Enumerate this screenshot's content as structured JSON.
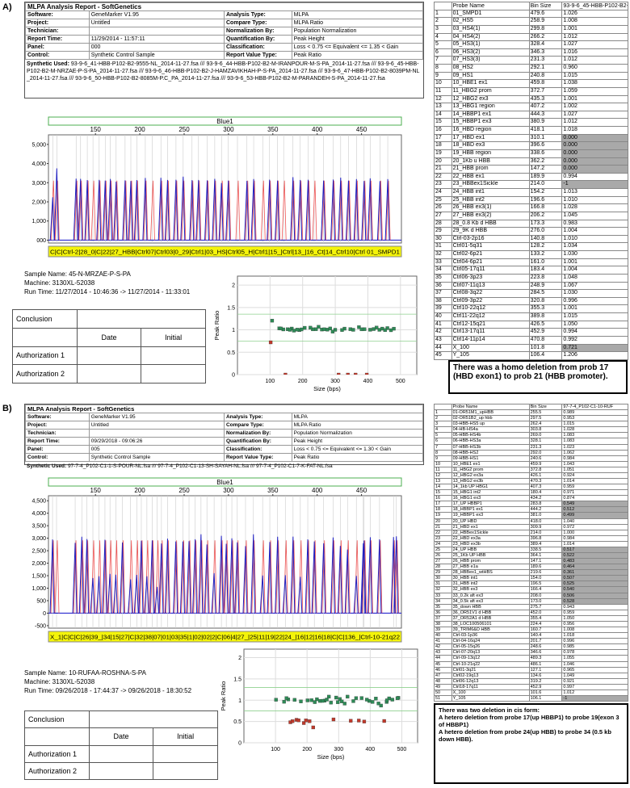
{
  "panels": [
    {
      "label": "A)",
      "report": {
        "title": "MLPA Analysis Report - SoftGenetics",
        "rows": [
          [
            "Software:",
            "GeneMarker V1.95",
            "Analysis Type:",
            "MLPA"
          ],
          [
            "Project:",
            "Untitled",
            "Compare Type:",
            "MLPA Ratio"
          ],
          [
            "Technician:",
            "",
            "Normalization By:",
            "Population Normalization"
          ],
          [
            "Report Time:",
            "11/29/2014 - 11:57:11",
            "Quantification By:",
            "Peak Height"
          ],
          [
            "Panel:",
            "000",
            "Classification:",
            "Loss < 0.75 <= Equivalent <= 1.35 < Gain"
          ],
          [
            "Control:",
            "Synthetic Control Sample",
            "Report Value Type:",
            "Peak Ratio"
          ]
        ],
        "synthetic_label": "Synthetic Used:",
        "synthetic_text": "93-9-6_41-HBB-P102-B2-9555-NL_2014-11-27.fsa /// 93-9-6_44-HBB-P102-B2-M-IRANPOUR-M-S-PA_2014-11-27.fsa /// 93-9-6_45-HBB-P102-B2-M-NRZAE-P-S-PA_2014-11-27.fsa /// 93-9-6_46-HBB-P102-B2-J-HAMZAVIKHAH-P-S-PA_2014-11-27.fsa /// 93-9-6_47-HBB-P102-B2-8039PM-NL_2014-11-27.fsa /// 93-9-6_50-HBB-P102-B2-8085M-P.C_PA_2014-11-27.fsa /// 93-9-6_53-HBB-P102-B2-M-PARANDEH-S-PA_2014-11-27.fsa"
      },
      "electropherogram": {
        "title": "Blue1",
        "xlim": [
          97,
          495
        ],
        "xticks": [
          150,
          200,
          250,
          300,
          350,
          400,
          450
        ],
        "ylim": [
          -150,
          5500
        ],
        "yticks": [
          {
            "value": 0,
            "label": "000"
          },
          {
            "value": 1000,
            "label": "1,000"
          },
          {
            "value": 2000,
            "label": "2,000"
          },
          {
            "value": 3000,
            "label": "3,000"
          },
          {
            "value": 4000,
            "label": "4,000"
          },
          {
            "value": 5000,
            "label": "5,000"
          }
        ],
        "strip": "C|C|Ctrl-2|28_0|C|22|27_HBB|Ctrl07|Ctrl03|0_29|Ctrl1|03_HS|Ctrl05_H|Ctrl1|15_|Ctrl|13_|16_Ct|14_Ctrl10|Ctrl 01_SMPD1"
      },
      "sample_info": [
        "Sample Name: 45-N-MRZAE-P-S-PA",
        "Machine: 3130XL-52038",
        "Run Time: 11/27/2014 - 10:46:36 -> 11/27/2014 - 11:33:01"
      ],
      "conclusion": {
        "title": "Conclusion",
        "columns": [
          "Date",
          "Initial"
        ],
        "rows": [
          "Authorization 1",
          "Authorization 2"
        ]
      },
      "ratio_plot": {
        "xlabel": "Size (bps)",
        "ylabel": "Peak Ratio",
        "xlim": [
          0,
          550
        ],
        "xticks": [
          100,
          200,
          300,
          400,
          500
        ],
        "ylim": [
          0,
          2.2
        ],
        "yticks": [
          0,
          0.5,
          1,
          1.5,
          2
        ],
        "thresholds": [
          0.75,
          1.35
        ]
      },
      "probe_table": {
        "header": [
          "Probe Name",
          "Bin Size",
          "93-9-6_45-HBB-P102-B2-M"
        ],
        "rows": [
          [
            "1",
            "01_SMPD1",
            "479.6",
            "1.026"
          ],
          [
            "2",
            "02_HS5",
            "258.9",
            "1.008"
          ],
          [
            "3",
            "03_HS4(1)",
            "299.8",
            "1.001"
          ],
          [
            "4",
            "04_HS4(2)",
            "266.2",
            "1.012"
          ],
          [
            "5",
            "05_HS3(1)",
            "328.4",
            "1.027"
          ],
          [
            "6",
            "06_HS3(2)",
            "346.3",
            "1.016"
          ],
          [
            "7",
            "07_HS3(3)",
            "231.3",
            "1.012"
          ],
          [
            "8",
            "08_HS2",
            "292.1",
            "0.960"
          ],
          [
            "9",
            "09_HS1",
            "240.8",
            "1.015"
          ],
          [
            "10",
            "10_HBE1 ex1",
            "459.8",
            "1.038"
          ],
          [
            "11",
            "11_HBG2 prom",
            "372.7",
            "1.059"
          ],
          [
            "12",
            "12_HBG2 ex3",
            "435.3",
            "1.001"
          ],
          [
            "13",
            "13_HBG1 region",
            "407.2",
            "1.002"
          ],
          [
            "14",
            "14_HBBP1 ex1",
            "444.3",
            "1.027"
          ],
          [
            "15",
            "15_HBBP1 ex3",
            "380.9",
            "1.012"
          ],
          [
            "16",
            "16_HBD region",
            "418.1",
            "1.018"
          ],
          [
            "17",
            "17_HBD ex1",
            "310.1",
            "0.000"
          ],
          [
            "18",
            "18_HBD ex3",
            "396.6",
            "0.000"
          ],
          [
            "19",
            "19_HBB region",
            "338.6",
            "0.000"
          ],
          [
            "20",
            "20_1Kb u HBB",
            "362.2",
            "0.000"
          ],
          [
            "21",
            "21_HBB prom",
            "147.2",
            "0.000"
          ],
          [
            "22",
            "22_HBB ex1",
            "189.9",
            "0.994"
          ],
          [
            "23",
            "23_HBBex1Sickle",
            "214.0",
            "-1"
          ],
          [
            "24",
            "24_HBB int1",
            "154.2",
            "1.013"
          ],
          [
            "25",
            "25_HBB int2",
            "196.6",
            "1.010"
          ],
          [
            "26",
            "26_HBB ex3(1)",
            "166.8",
            "1.028"
          ],
          [
            "27",
            "27_HBB ex3(2)",
            "206.2",
            "1.045"
          ],
          [
            "28",
            "28_0.8 Kb d HBB",
            "173.3",
            "0.983"
          ],
          [
            "29",
            "29_9K d HBB",
            "276.0",
            "1.004"
          ],
          [
            "30",
            "Ctrl-03-2p16",
            "140.8",
            "1.010"
          ],
          [
            "31",
            "Ctrl01-5q31",
            "128.2",
            "1.034"
          ],
          [
            "32",
            "Ctrl02-6p21",
            "133.2",
            "1.030"
          ],
          [
            "33",
            "Ctrl04-6p21",
            "161.0",
            "1.001"
          ],
          [
            "34",
            "Ctrl05-17q11",
            "183.4",
            "1.004"
          ],
          [
            "35",
            "Ctrl06-3p23",
            "223.8",
            "1.048"
          ],
          [
            "36",
            "Ctrl07-11q13",
            "248.9",
            "1.067"
          ],
          [
            "37",
            "Ctrl08-3q22",
            "284.5",
            "1.030"
          ],
          [
            "38",
            "Ctrl09-3p22",
            "320.8",
            "0.996"
          ],
          [
            "39",
            "Ctrl10-22q12",
            "355.3",
            "1.001"
          ],
          [
            "40",
            "Ctrl11-22q12",
            "389.8",
            "1.015"
          ],
          [
            "41",
            "Ctrl12-15q21",
            "426.5",
            "1.050"
          ],
          [
            "42",
            "Ctrl13-17q11",
            "452.9",
            "0.994"
          ],
          [
            "43",
            "Ctrl14-11p14",
            "470.8",
            "0.992"
          ],
          [
            "44",
            "X_100",
            "101.8",
            "0.721"
          ],
          [
            "45",
            "Y_105",
            "106.4",
            "1.206"
          ]
        ]
      },
      "note": [
        "There was a homo deletion from prob 17 (HBD exon1) to prob 21 (HBB promoter)."
      ]
    },
    {
      "label": "B)",
      "report": {
        "title": "MLPA Analysis Report - SoftGenetics",
        "rows": [
          [
            "Software:",
            "GeneMarker V1.95",
            "Analysis Type:",
            "MLPA"
          ],
          [
            "Project:",
            "Untitled",
            "Compare Type:",
            "MLPA Ratio"
          ],
          [
            "Technician:",
            "",
            "Normalization By:",
            "Population Normalization"
          ],
          [
            "Report Time:",
            "09/29/2018 - 09:06:26",
            "Quantification By:",
            "Peak Height"
          ],
          [
            "Panel:",
            "005",
            "Classification:",
            "Loss < 0.75 <= Equivalent <= 1.30 < Gain"
          ],
          [
            "Control:",
            "Synthetic Control Sample",
            "Report Value Type:",
            "Peak Ratio"
          ]
        ],
        "synthetic_label": "Synthetic Used:",
        "synthetic_text": "97-7-4_P102-C1-1-S-POUR-NL.fsa /// 97-7-4_P102-C1-13-SH-SAYAH-NL.fsa /// 97-7-4_P102-C1-7-K-FAT-NL.fsa"
      },
      "electropherogram": {
        "title": "Blue1",
        "xlim": [
          97,
          495
        ],
        "xticks": [
          150,
          200,
          250,
          300,
          350,
          400,
          450
        ],
        "ylim": [
          -600,
          4700
        ],
        "yticks": [
          -500,
          0,
          500,
          {
            "value": 1000,
            "label": "1,000"
          },
          {
            "value": 1500,
            "label": "1,500"
          },
          {
            "value": 2000,
            "label": "2,000"
          },
          {
            "value": 2500,
            "label": "2,500"
          },
          {
            "value": 3000,
            "label": "3,000"
          },
          {
            "value": 3500,
            "label": "3,500"
          },
          {
            "value": 4000,
            "label": "4,000"
          },
          {
            "value": 4500,
            "label": "4,500"
          }
        ],
        "strip": "X_1|C|C|C|26|39_|34|15|27|C|32|38|07|01|03|35|1|02|02|2|C|06|4|27_|25|11|19|22|24_|16|12|16|18|C|C|136_|Ctrl-10-21q22"
      },
      "sample_info": [
        "Sample Name: 10-RUFAA-ROSHNA-S-PA",
        "Machine: 3130XL-52038",
        "Run Time: 09/26/2018 - 17:44:37 -> 09/26/2018 - 18:30:52"
      ],
      "conclusion": {
        "title": "Conclusion",
        "columns": [
          "Date",
          "Initial"
        ],
        "rows": [
          "Authorization 1",
          "Authorization 2"
        ]
      },
      "ratio_plot": {
        "xlabel": "Size (bps)",
        "ylabel": "Peak Ratio",
        "xlim": [
          0,
          550
        ],
        "xticks": [
          100,
          200,
          300,
          400,
          500
        ],
        "ylim": [
          0,
          2.2
        ],
        "yticks": [
          0,
          0.5,
          1,
          1.5,
          2
        ],
        "thresholds": [
          0.75,
          1.3
        ]
      },
      "probe_table": {
        "header": [
          "Probe Name",
          "Bin Size",
          "97-7-4_P102-C1-10-RUF"
        ],
        "rows": [
          [
            "1",
            "01-OR51M1_upHBB",
            "255.5",
            "0.989"
          ],
          [
            "2",
            "02-OR51B2_up hbb",
            "297.5",
            "0.953"
          ],
          [
            "3",
            "03-HBB-HS5 up",
            "262.4",
            "1.015"
          ],
          [
            "4",
            "04-HB-HS4a",
            "303.8",
            "1.028"
          ],
          [
            "5",
            "05-HBB-HS4b",
            "269.0",
            "1.083"
          ],
          [
            "6",
            "06-HBB-HS3a",
            "328.1",
            "1.083"
          ],
          [
            "7",
            "07-HBB-HS3b",
            "231.3",
            "1.023"
          ],
          [
            "8",
            "08-HBB-HS2",
            "292.0",
            "1.062"
          ],
          [
            "9",
            "09-HBB-HS1",
            "240.6",
            "0.984"
          ],
          [
            "10",
            "10_HBE1 ex1",
            "459.9",
            "1.043"
          ],
          [
            "11",
            "11_HBG2 prom",
            "372.8",
            "1.051"
          ],
          [
            "12",
            "12_HBG2 ex3a",
            "426.1",
            "0.924"
          ],
          [
            "13",
            "13_HBG2 ex3b",
            "470.3",
            "1.014"
          ],
          [
            "14",
            "14_1kb UP HBG1",
            "407.3",
            "0.959"
          ],
          [
            "15",
            "15_HBG1 int2",
            "180.4",
            "0.971"
          ],
          [
            "16",
            "16_HBG1 ex3",
            "434.2",
            "0.874"
          ],
          [
            "17",
            "17_UP HBBP1",
            "283.8",
            "0.549"
          ],
          [
            "18",
            "18_HBBP1 ex1",
            "444.2",
            "0.512"
          ],
          [
            "19",
            "19_HBBP1 ex3",
            "381.0",
            "0.499"
          ],
          [
            "20",
            "20_UP HBD",
            "418.0",
            "1.040"
          ],
          [
            "21",
            "21_HBD ex1",
            "309.9",
            "0.972"
          ],
          [
            "22",
            "22_HBBex1Sickle",
            "214.0",
            "1.000"
          ],
          [
            "23",
            "22_HBD ex3a",
            "396.8",
            "0.984"
          ],
          [
            "24",
            "23_HBD ex3b",
            "389.4",
            "1.014"
          ],
          [
            "25",
            "24_UP HBB",
            "338.5",
            "0.517"
          ],
          [
            "26",
            "25_1Kb UP HBB",
            "364.1",
            "0.522"
          ],
          [
            "27",
            "26_HBB prom",
            "147.1",
            "0.483"
          ],
          [
            "28",
            "27_HBB e1a",
            "189.6",
            "0.464"
          ],
          [
            "29",
            "28_HBBex1_wtHBS",
            "219.6",
            "0.361"
          ],
          [
            "30",
            "30_HBB int1",
            "154.0",
            "0.507"
          ],
          [
            "31",
            "31_HBB int2",
            "196.5",
            "0.525"
          ],
          [
            "32",
            "32_HBB ex3",
            "166.4",
            "0.540"
          ],
          [
            "33",
            "33_0.2k aft ex3",
            "208.0",
            "0.506"
          ],
          [
            "34",
            "34_0.5k aft ex3",
            "173.0",
            "0.528"
          ],
          [
            "35",
            "35_down HBB",
            "275.7",
            "0.943"
          ],
          [
            "36",
            "36_OR51V1 d HBB",
            "452.0",
            "0.959"
          ],
          [
            "37",
            "37_OR52A1 d HBB",
            "355.4",
            "1.050"
          ],
          [
            "38",
            "38_LOC100506101",
            "224.4",
            "0.956"
          ],
          [
            "39",
            "39_TRIM6&D HBB",
            "160.7",
            "1.008"
          ],
          [
            "40",
            "Ctrl-03-1p36",
            "140.4",
            "1.018"
          ],
          [
            "41",
            "Ctrl-04-16q24",
            "201.7",
            "0.996"
          ],
          [
            "42",
            "Ctrl-05-15q26",
            "248.6",
            "0.985"
          ],
          [
            "43",
            "Ctrl-07-20q13",
            "346.6",
            "0.978"
          ],
          [
            "44",
            "Ctrl-09-13q12",
            "489.3",
            "1.055"
          ],
          [
            "45",
            "Ctrl-10-21q22",
            "486.1",
            "1.046"
          ],
          [
            "46",
            "Ctrl01-3q21",
            "127.1",
            "0.965"
          ],
          [
            "47",
            "Ctrl02-19q13",
            "134.6",
            "1.049"
          ],
          [
            "48",
            "Ctrl06-12q13",
            "319.2",
            "0.921"
          ],
          [
            "49",
            "Ctrl18-17q11",
            "452.9",
            "0.997"
          ],
          [
            "50",
            "X_100",
            "101.6",
            "1.012"
          ],
          [
            "51",
            "Y_105",
            "106.1",
            "-1"
          ]
        ]
      },
      "note": [
        "There was two deletion in cis form:",
        "A hetero deletion from probe 17(up HBBP1) to probe 19(exon 3 of HBBP1)",
        "A hetero deletion from probe 24(up HBB) to probe 34 (0.5 kb down HBB)."
      ]
    }
  ]
}
